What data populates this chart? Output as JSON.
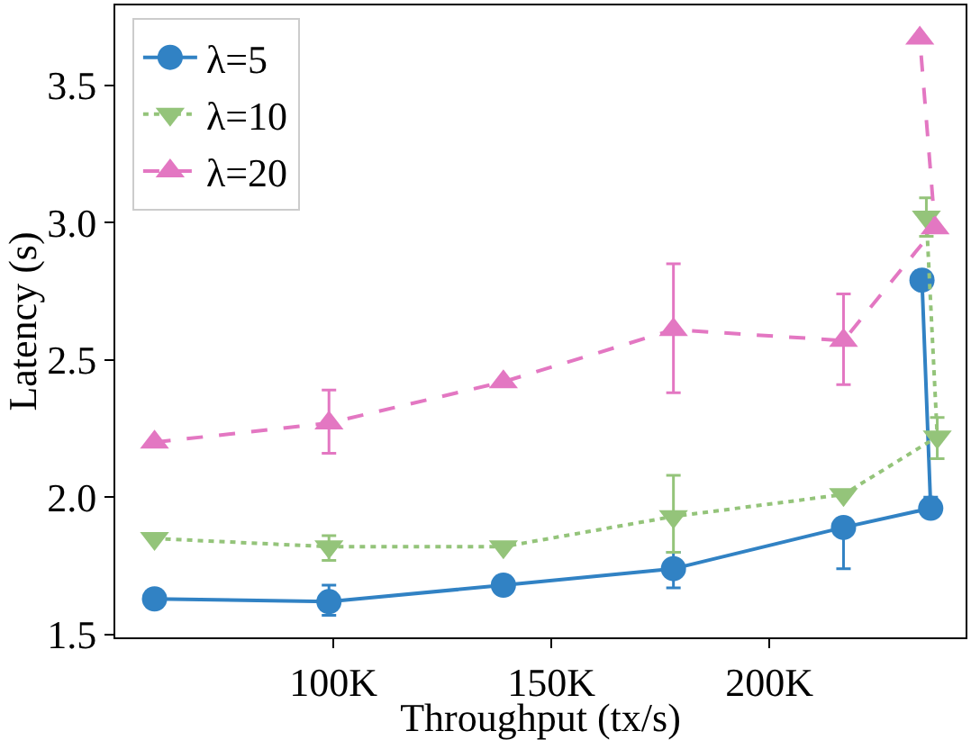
{
  "chart_data": {
    "type": "line",
    "xlabel": "Throughput (tx/s)",
    "ylabel": "Latency (s)",
    "xlim": [
      50,
      245
    ],
    "xticks": [
      {
        "value": 100,
        "label": "100K"
      },
      {
        "value": 150,
        "label": "150K"
      },
      {
        "value": 200,
        "label": "200K"
      }
    ],
    "ylim": [
      1.49,
      3.79
    ],
    "yticks": [
      1.5,
      {
        "value": 2,
        "label": "2.0"
      },
      2.5,
      {
        "value": 3,
        "label": "3.0"
      },
      3.5
    ],
    "legend": "top left",
    "series": [
      {
        "name": "λ=5",
        "color": "#3182c4",
        "marker": "circle",
        "line_style": "solid",
        "x": [
          59,
          99,
          139,
          178,
          217,
          237,
          235
        ],
        "values": [
          1.63,
          1.62,
          1.68,
          1.74,
          1.89,
          1.96,
          2.79
        ],
        "errors": [
          null,
          [
            1.57,
            1.68
          ],
          null,
          [
            1.67,
            1.8
          ],
          [
            1.74,
            1.92
          ],
          [
            1.93,
            2.0
          ],
          null
        ]
      },
      {
        "name": "λ=10",
        "color": "#94c47a",
        "marker": "triangle-down",
        "line_style": "dotted",
        "x": [
          59,
          99,
          139,
          178,
          217,
          238.5,
          236
        ],
        "values": [
          1.85,
          1.82,
          1.82,
          1.93,
          2.01,
          2.22,
          3.02
        ],
        "errors": [
          null,
          [
            1.77,
            1.86
          ],
          null,
          [
            1.8,
            2.08
          ],
          null,
          [
            2.14,
            2.29
          ],
          [
            2.95,
            3.09
          ]
        ]
      },
      {
        "name": "λ=20",
        "color": "#e377c2",
        "marker": "triangle-up",
        "line_style": "dashed",
        "x": [
          59,
          99,
          139,
          178,
          217,
          238,
          234.5
        ],
        "values": [
          2.2,
          2.27,
          2.42,
          2.61,
          2.57,
          2.98,
          3.67
        ],
        "errors": [
          null,
          [
            2.16,
            2.39
          ],
          null,
          [
            2.38,
            2.85
          ],
          [
            2.41,
            2.74
          ],
          null,
          null
        ]
      }
    ]
  }
}
